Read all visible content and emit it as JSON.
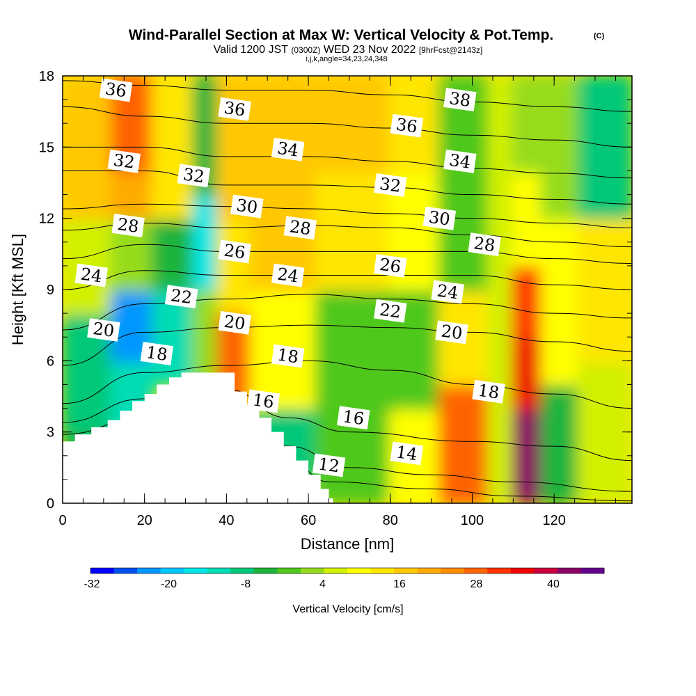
{
  "chart_data": {
    "type": "heatmap",
    "title": "Wind-Parallel Section at Max W: Vertical Velocity & Pot.Temp.",
    "title_mark": "(C)",
    "subtitle_parts": [
      "Valid 1200 JST",
      "(0300Z)",
      "WED 23 Nov 2022",
      "[9hrFcst@2143z]"
    ],
    "subtitle2": "i,j,k,angle=34,23,24,348",
    "xlabel": "Distance [nm]",
    "ylabel": "Height [Kft MSL]",
    "xlim": [
      0,
      139
    ],
    "ylim": [
      0,
      18
    ],
    "x_ticks": [
      "0",
      "20",
      "40",
      "60",
      "80",
      "100",
      "120"
    ],
    "y_ticks": [
      "0",
      "3",
      "6",
      "9",
      "12",
      "15",
      "18"
    ],
    "colorbar": {
      "label": "Vertical Velocity [cm/s]",
      "ticks": [
        "-32",
        "-20",
        "-8",
        "4",
        "16",
        "28",
        "40"
      ],
      "levels": [
        -32,
        -28,
        -24,
        -20,
        -16,
        -12,
        -8,
        -4,
        0,
        4,
        8,
        12,
        16,
        20,
        24,
        28,
        32,
        36,
        40,
        44,
        48
      ],
      "colors": [
        "#0000ff",
        "#0050f0",
        "#0096ff",
        "#00c8ff",
        "#00e6e6",
        "#00dcb4",
        "#00c878",
        "#1eb43c",
        "#50c81e",
        "#96dc1e",
        "#d2f000",
        "#ffff00",
        "#ffe600",
        "#ffc800",
        "#ffaa00",
        "#ff8c00",
        "#ff6400",
        "#ff3200",
        "#ee0000",
        "#c8003c",
        "#8c0064",
        "#64008c"
      ]
    },
    "vertical_velocity_cells": [
      {
        "x": [
          0,
          12
        ],
        "z": [
          0,
          3
        ],
        "w": -8
      },
      {
        "x": [
          0,
          12
        ],
        "z": [
          3,
          8
        ],
        "w": -10
      },
      {
        "x": [
          0,
          12
        ],
        "z": [
          8,
          12
        ],
        "w": 6
      },
      {
        "x": [
          0,
          12
        ],
        "z": [
          12,
          18
        ],
        "w": 18
      },
      {
        "x": [
          12,
          22
        ],
        "z": [
          3,
          6
        ],
        "w": -14
      },
      {
        "x": [
          12,
          22
        ],
        "z": [
          6,
          9
        ],
        "w": -26
      },
      {
        "x": [
          12,
          22
        ],
        "z": [
          9,
          12
        ],
        "w": 0
      },
      {
        "x": [
          12,
          22
        ],
        "z": [
          12,
          14
        ],
        "w": 20
      },
      {
        "x": [
          12,
          22
        ],
        "z": [
          14,
          18
        ],
        "w": 28
      },
      {
        "x": [
          22,
          32
        ],
        "z": [
          5,
          9
        ],
        "w": -16
      },
      {
        "x": [
          22,
          32
        ],
        "z": [
          9,
          12
        ],
        "w": -6
      },
      {
        "x": [
          22,
          32
        ],
        "z": [
          12,
          18
        ],
        "w": 14
      },
      {
        "x": [
          32,
          38
        ],
        "z": [
          5,
          9
        ],
        "w": 0
      },
      {
        "x": [
          32,
          38
        ],
        "z": [
          9,
          13
        ],
        "w": -18
      },
      {
        "x": [
          32,
          38
        ],
        "z": [
          13,
          18
        ],
        "w": -6
      },
      {
        "x": [
          38,
          46
        ],
        "z": [
          4,
          8
        ],
        "w": 30
      },
      {
        "x": [
          38,
          46
        ],
        "z": [
          8,
          12
        ],
        "w": 14
      },
      {
        "x": [
          38,
          46
        ],
        "z": [
          12,
          18
        ],
        "w": 16
      },
      {
        "x": [
          46,
          62
        ],
        "z": [
          1,
          4
        ],
        "w": -10
      },
      {
        "x": [
          46,
          62
        ],
        "z": [
          4,
          9
        ],
        "w": 10
      },
      {
        "x": [
          46,
          62
        ],
        "z": [
          9,
          14
        ],
        "w": 18
      },
      {
        "x": [
          46,
          62
        ],
        "z": [
          14,
          18
        ],
        "w": 18
      },
      {
        "x": [
          62,
          80
        ],
        "z": [
          0,
          3
        ],
        "w": -4
      },
      {
        "x": [
          62,
          80
        ],
        "z": [
          3,
          9
        ],
        "w": -2
      },
      {
        "x": [
          62,
          80
        ],
        "z": [
          9,
          14
        ],
        "w": 14
      },
      {
        "x": [
          62,
          80
        ],
        "z": [
          14,
          18
        ],
        "w": 16
      },
      {
        "x": [
          80,
          92
        ],
        "z": [
          0,
          4
        ],
        "w": 10
      },
      {
        "x": [
          80,
          92
        ],
        "z": [
          4,
          9
        ],
        "w": -4
      },
      {
        "x": [
          80,
          92
        ],
        "z": [
          9,
          14
        ],
        "w": 10
      },
      {
        "x": [
          80,
          92
        ],
        "z": [
          14,
          18
        ],
        "w": 14
      },
      {
        "x": [
          92,
          104
        ],
        "z": [
          0,
          5
        ],
        "w": 28
      },
      {
        "x": [
          92,
          104
        ],
        "z": [
          5,
          9
        ],
        "w": 14
      },
      {
        "x": [
          92,
          104
        ],
        "z": [
          9,
          14
        ],
        "w": -2
      },
      {
        "x": [
          92,
          104
        ],
        "z": [
          14,
          18
        ],
        "w": -4
      },
      {
        "x": [
          104,
          110
        ],
        "z": [
          0,
          18
        ],
        "w": 4
      },
      {
        "x": [
          110,
          117
        ],
        "z": [
          0,
          4
        ],
        "w": 44
      },
      {
        "x": [
          110,
          117
        ],
        "z": [
          4,
          7
        ],
        "w": 36
      },
      {
        "x": [
          110,
          117
        ],
        "z": [
          7,
          10
        ],
        "w": 32
      },
      {
        "x": [
          110,
          117
        ],
        "z": [
          10,
          14
        ],
        "w": 10
      },
      {
        "x": [
          110,
          117
        ],
        "z": [
          14,
          18
        ],
        "w": 0
      },
      {
        "x": [
          117,
          126
        ],
        "z": [
          0,
          5
        ],
        "w": -6
      },
      {
        "x": [
          117,
          126
        ],
        "z": [
          5,
          12
        ],
        "w": 10
      },
      {
        "x": [
          117,
          126
        ],
        "z": [
          12,
          18
        ],
        "w": 2
      },
      {
        "x": [
          126,
          139
        ],
        "z": [
          0,
          6
        ],
        "w": 6
      },
      {
        "x": [
          126,
          139
        ],
        "z": [
          6,
          12
        ],
        "w": 14
      },
      {
        "x": [
          126,
          139
        ],
        "z": [
          12,
          18
        ],
        "w": -10
      }
    ],
    "terrain": [
      [
        0,
        2.6
      ],
      [
        3,
        2.9
      ],
      [
        7,
        3.2
      ],
      [
        11,
        3.5
      ],
      [
        14,
        3.9
      ],
      [
        17,
        4.3
      ],
      [
        20,
        4.6
      ],
      [
        23,
        5.0
      ],
      [
        26,
        5.3
      ],
      [
        29,
        5.5
      ],
      [
        39,
        5.5
      ],
      [
        42,
        4.7
      ],
      [
        45,
        4.1
      ],
      [
        48,
        3.6
      ],
      [
        51,
        3.0
      ],
      [
        54,
        2.4
      ],
      [
        57,
        1.8
      ],
      [
        60,
        1.2
      ],
      [
        63,
        0.6
      ],
      [
        65,
        0.2
      ],
      [
        66,
        0.0
      ]
    ],
    "theta_contours": [
      {
        "label": "12",
        "points": [
          [
            0,
            2.2
          ],
          [
            20,
            2.6
          ],
          [
            40,
            3.0
          ],
          [
            55,
            1.8
          ],
          [
            65,
            0.9
          ],
          [
            90,
            0.6
          ],
          [
            110,
            0.3
          ],
          [
            139,
            0.1
          ]
        ]
      },
      {
        "label": "14",
        "points": [
          [
            0,
            2.9
          ],
          [
            20,
            3.6
          ],
          [
            40,
            4.0
          ],
          [
            55,
            2.4
          ],
          [
            70,
            1.5
          ],
          [
            90,
            1.2
          ],
          [
            110,
            0.9
          ],
          [
            139,
            0.5
          ]
        ]
      },
      {
        "label": "16",
        "points": [
          [
            0,
            3.4
          ],
          [
            20,
            4.4
          ],
          [
            40,
            4.8
          ],
          [
            55,
            3.6
          ],
          [
            70,
            3.0
          ],
          [
            100,
            2.6
          ],
          [
            120,
            2.4
          ],
          [
            139,
            1.8
          ]
        ]
      },
      {
        "label": "18",
        "points": [
          [
            0,
            4.2
          ],
          [
            20,
            5.5
          ],
          [
            40,
            5.8
          ],
          [
            60,
            6.0
          ],
          [
            80,
            5.6
          ],
          [
            100,
            5.0
          ],
          [
            120,
            4.6
          ],
          [
            139,
            4.0
          ]
        ]
      },
      {
        "label": "20",
        "points": [
          [
            0,
            5.8
          ],
          [
            20,
            7.2
          ],
          [
            40,
            7.4
          ],
          [
            60,
            7.5
          ],
          [
            80,
            7.4
          ],
          [
            100,
            7.2
          ],
          [
            120,
            6.8
          ],
          [
            139,
            6.4
          ]
        ]
      },
      {
        "label": "22",
        "points": [
          [
            0,
            7.3
          ],
          [
            20,
            8.4
          ],
          [
            40,
            8.6
          ],
          [
            60,
            8.8
          ],
          [
            80,
            8.6
          ],
          [
            100,
            8.4
          ],
          [
            120,
            8.0
          ],
          [
            139,
            7.8
          ]
        ]
      },
      {
        "label": "24",
        "points": [
          [
            0,
            9.0
          ],
          [
            20,
            9.8
          ],
          [
            40,
            9.6
          ],
          [
            60,
            9.6
          ],
          [
            80,
            9.6
          ],
          [
            100,
            9.6
          ],
          [
            120,
            9.2
          ],
          [
            139,
            9.0
          ]
        ]
      },
      {
        "label": "26",
        "points": [
          [
            0,
            10.3
          ],
          [
            20,
            10.9
          ],
          [
            40,
            10.6
          ],
          [
            60,
            10.6
          ],
          [
            80,
            10.6
          ],
          [
            100,
            10.6
          ],
          [
            120,
            10.3
          ],
          [
            139,
            10.1
          ]
        ]
      },
      {
        "label": "28",
        "points": [
          [
            0,
            11.5
          ],
          [
            20,
            11.8
          ],
          [
            40,
            11.6
          ],
          [
            60,
            11.7
          ],
          [
            80,
            11.6
          ],
          [
            100,
            11.3
          ],
          [
            120,
            11.0
          ],
          [
            139,
            10.8
          ]
        ]
      },
      {
        "label": "30",
        "points": [
          [
            0,
            12.4
          ],
          [
            20,
            12.6
          ],
          [
            40,
            12.5
          ],
          [
            60,
            12.4
          ],
          [
            80,
            12.2
          ],
          [
            100,
            12.0
          ],
          [
            120,
            11.8
          ],
          [
            139,
            11.6
          ]
        ]
      },
      {
        "label": "32",
        "points": [
          [
            0,
            14.0
          ],
          [
            20,
            14.0
          ],
          [
            40,
            13.4
          ],
          [
            60,
            13.4
          ],
          [
            80,
            13.3
          ],
          [
            100,
            13.0
          ],
          [
            120,
            12.8
          ],
          [
            139,
            12.6
          ]
        ]
      },
      {
        "label": "34",
        "points": [
          [
            0,
            15.0
          ],
          [
            20,
            15.0
          ],
          [
            40,
            14.6
          ],
          [
            60,
            14.6
          ],
          [
            80,
            14.4
          ],
          [
            100,
            14.1
          ],
          [
            120,
            13.9
          ],
          [
            139,
            13.7
          ]
        ]
      },
      {
        "label": "36",
        "points": [
          [
            0,
            16.7
          ],
          [
            20,
            16.3
          ],
          [
            40,
            16.0
          ],
          [
            60,
            16.0
          ],
          [
            80,
            15.8
          ],
          [
            100,
            15.5
          ],
          [
            120,
            15.3
          ],
          [
            139,
            15.0
          ]
        ]
      },
      {
        "label": "38",
        "points": [
          [
            0,
            17.8
          ],
          [
            20,
            17.6
          ],
          [
            40,
            17.4
          ],
          [
            60,
            17.4
          ],
          [
            80,
            17.2
          ],
          [
            100,
            16.9
          ],
          [
            120,
            16.7
          ],
          [
            139,
            16.5
          ]
        ]
      }
    ],
    "contour_labels": [
      {
        "text": "36",
        "x": 13,
        "z": 17.4
      },
      {
        "text": "36",
        "x": 42,
        "z": 16.6
      },
      {
        "text": "38",
        "x": 97,
        "z": 17.0
      },
      {
        "text": "34",
        "x": 55,
        "z": 14.9
      },
      {
        "text": "36",
        "x": 84,
        "z": 15.9
      },
      {
        "text": "32",
        "x": 15,
        "z": 14.4
      },
      {
        "text": "32",
        "x": 32,
        "z": 13.8
      },
      {
        "text": "34",
        "x": 97,
        "z": 14.4
      },
      {
        "text": "32",
        "x": 80,
        "z": 13.4
      },
      {
        "text": "30",
        "x": 45,
        "z": 12.5
      },
      {
        "text": "30",
        "x": 92,
        "z": 12.0
      },
      {
        "text": "28",
        "x": 16,
        "z": 11.7
      },
      {
        "text": "28",
        "x": 58,
        "z": 11.6
      },
      {
        "text": "28",
        "x": 103,
        "z": 10.9
      },
      {
        "text": "26",
        "x": 42,
        "z": 10.6
      },
      {
        "text": "26",
        "x": 80,
        "z": 10.0
      },
      {
        "text": "24",
        "x": 7,
        "z": 9.6
      },
      {
        "text": "24",
        "x": 55,
        "z": 9.6
      },
      {
        "text": "24",
        "x": 94,
        "z": 8.9
      },
      {
        "text": "22",
        "x": 29,
        "z": 8.7
      },
      {
        "text": "22",
        "x": 80,
        "z": 8.1
      },
      {
        "text": "20",
        "x": 10,
        "z": 7.3
      },
      {
        "text": "20",
        "x": 42,
        "z": 7.6
      },
      {
        "text": "20",
        "x": 95,
        "z": 7.2
      },
      {
        "text": "18",
        "x": 23,
        "z": 6.3
      },
      {
        "text": "18",
        "x": 55,
        "z": 6.2
      },
      {
        "text": "18",
        "x": 104,
        "z": 4.7
      },
      {
        "text": "16",
        "x": 49,
        "z": 4.3
      },
      {
        "text": "16",
        "x": 71,
        "z": 3.6
      },
      {
        "text": "14",
        "x": 84,
        "z": 2.1
      },
      {
        "text": "12",
        "x": 65,
        "z": 1.6
      }
    ]
  }
}
